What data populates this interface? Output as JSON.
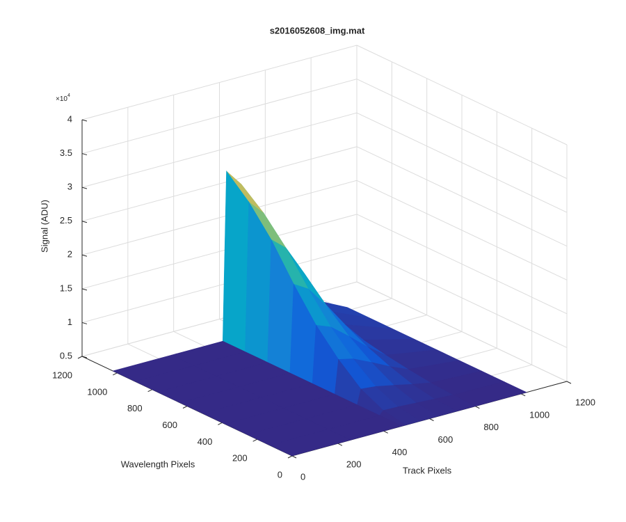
{
  "chart_data": {
    "type": "surface",
    "title": "s2016052608_img.mat",
    "xlabel": "Track Pixels",
    "ylabel": "Wavelength Pixels",
    "zlabel": "Signal (ADU)",
    "zscale_label": {
      "base": "×10",
      "exponent": "4"
    },
    "xlim": [
      0,
      1200
    ],
    "ylim": [
      0,
      1200
    ],
    "zlim": [
      5000,
      40000
    ],
    "xticks": [
      0,
      200,
      400,
      600,
      800,
      1000,
      1200
    ],
    "yticks": [
      0,
      200,
      400,
      600,
      800,
      1000,
      1200
    ],
    "zticks": [
      {
        "value": 5000,
        "label": "0.5"
      },
      {
        "value": 10000,
        "label": "1"
      },
      {
        "value": 15000,
        "label": "1.5"
      },
      {
        "value": 20000,
        "label": "2"
      },
      {
        "value": 25000,
        "label": "2.5"
      },
      {
        "value": 30000,
        "label": "3"
      },
      {
        "value": 35000,
        "label": "3.5"
      },
      {
        "value": 40000,
        "label": "4"
      }
    ],
    "grid": true,
    "x": [
      0,
      256,
      480,
      496,
      560,
      640,
      720,
      800,
      1024
    ],
    "y": [
      0,
      128,
      256,
      384,
      512,
      640,
      768,
      896,
      1024
    ],
    "z": [
      [
        5000,
        5000,
        5000,
        5000,
        5000,
        5000,
        5000,
        5000,
        5000
      ],
      [
        5000,
        5000,
        5000,
        5600,
        5540,
        5390,
        5228,
        5090,
        5000
      ],
      [
        5000,
        5000,
        5000,
        7200,
        6980,
        6430,
        5836,
        5330,
        5000
      ],
      [
        5000,
        5000,
        5000,
        10000,
        9500,
        8250,
        6900,
        5750,
        5000
      ],
      [
        5000,
        5000,
        5000,
        13500,
        12650,
        10525,
        8230,
        6275,
        5000
      ],
      [
        5000,
        5000,
        5000,
        18000,
        16700,
        13450,
        9940,
        6950,
        5000
      ],
      [
        5000,
        5000,
        5000,
        23000,
        21200,
        16700,
        11840,
        7700,
        5000
      ],
      [
        5000,
        5000,
        5000,
        27000,
        24800,
        19300,
        13360,
        8300,
        5000
      ],
      [
        5000,
        5000,
        5000,
        30000,
        27500,
        21250,
        14500,
        8750,
        5000
      ]
    ],
    "clim": [
      5000,
      36000
    ],
    "colormap": [
      "#352a87",
      "#0f5cdd",
      "#1481d6",
      "#06a4ca",
      "#2eb7a4",
      "#87bf77",
      "#d1bb59",
      "#fec832",
      "#f9fb0e"
    ]
  }
}
